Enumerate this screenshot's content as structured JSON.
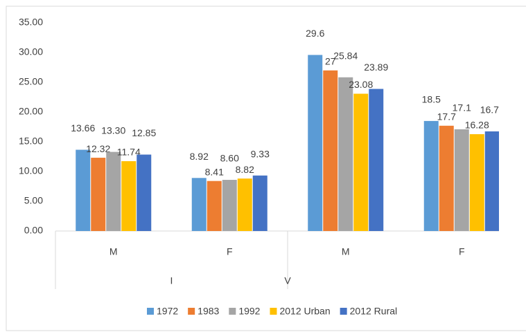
{
  "chart_data": {
    "type": "bar",
    "categories": [
      "M",
      "F",
      "M",
      "F"
    ],
    "groups": [
      "I",
      "V"
    ],
    "series": [
      {
        "name": "1972",
        "color": "#5b9bd5",
        "values": [
          13.66,
          8.92,
          29.6,
          18.5
        ]
      },
      {
        "name": "1983",
        "color": "#ed7d31",
        "values": [
          12.32,
          8.41,
          27,
          17.7
        ]
      },
      {
        "name": "1992",
        "color": "#a5a5a5",
        "values": [
          13.3,
          8.6,
          25.84,
          17.1
        ],
        "value_labels": [
          "13.30",
          "8.60",
          "25.84",
          "17.1"
        ]
      },
      {
        "name": "2012 Urban",
        "color": "#ffc000",
        "values": [
          11.74,
          8.82,
          23.08,
          16.28
        ]
      },
      {
        "name": "2012 Rural",
        "color": "#4472c4",
        "values": [
          12.85,
          9.33,
          23.89,
          16.75
        ]
      }
    ],
    "ylim": [
      0,
      35
    ],
    "yticks": [
      {
        "value": 0,
        "label": "0.00"
      },
      {
        "value": 5,
        "label": "5.00"
      },
      {
        "value": 10,
        "label": "10.00"
      },
      {
        "value": 15,
        "label": "15.00"
      },
      {
        "value": 20,
        "label": "20.00"
      },
      {
        "value": 25,
        "label": "25.00"
      },
      {
        "value": 30,
        "label": "30.00"
      },
      {
        "value": 35,
        "label": "35.00"
      }
    ],
    "grid": false,
    "legend": "bottom"
  }
}
